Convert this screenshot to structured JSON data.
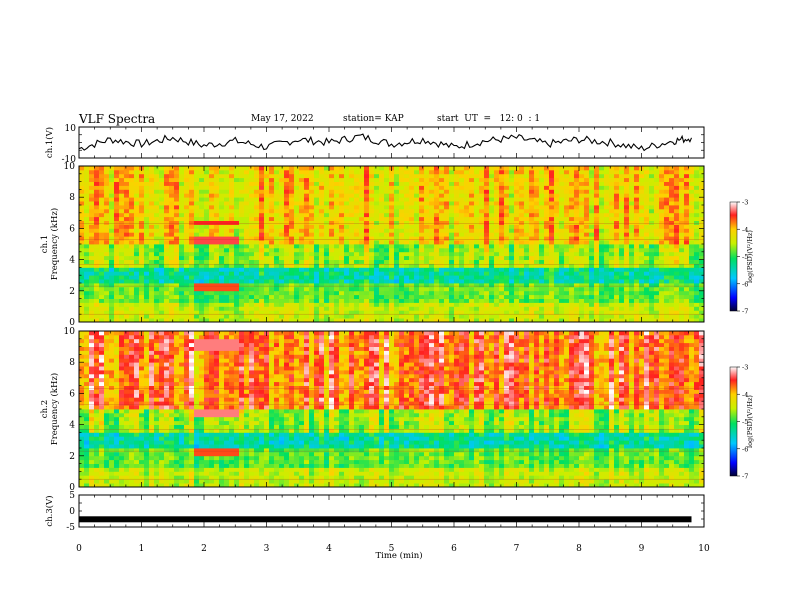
{
  "header": {
    "title": "VLF Spectra",
    "date": "May 17, 2022",
    "station": "station= KAP",
    "start": "start  UT  =   12: 0  : 1"
  },
  "chart_data": [
    {
      "type": "line",
      "panel": "ch1-waveform",
      "ylabel": "ch.1(V)",
      "ylim": [
        -10,
        10
      ],
      "yticks": [
        "10",
        "-10"
      ],
      "xlim": [
        0,
        10
      ],
      "x_min": [
        0,
        0.5,
        1,
        1.5,
        2,
        2.5,
        3,
        3.5,
        4,
        4.5,
        5,
        5.5,
        6,
        6.5,
        7,
        7.5,
        8,
        8.5,
        9,
        9.5,
        9.8
      ],
      "y_V": [
        -4,
        2,
        -1,
        3,
        -2,
        1,
        -3,
        2,
        0,
        4,
        -1,
        2,
        -3,
        1,
        3,
        -1,
        2,
        0,
        -4,
        1,
        3
      ]
    },
    {
      "type": "heatmap",
      "panel": "ch1-spectrogram",
      "ylabel": "ch.1\nFrequency  (kHz)",
      "ylim": [
        0,
        10
      ],
      "yticks": [
        "0",
        "2",
        "4",
        "6",
        "8",
        "10"
      ],
      "xlim": [
        0,
        10
      ],
      "colorbar": {
        "label": "log(PSD)(V²/Hz)",
        "range": [
          -7,
          -3
        ],
        "ticks": [
          "-3",
          "-4",
          "-5",
          "-6",
          "-7"
        ]
      }
    },
    {
      "type": "heatmap",
      "panel": "ch2-spectrogram",
      "ylabel": "ch.2\nFrequency  (kHz)",
      "ylim": [
        0,
        10
      ],
      "yticks": [
        "0",
        "2",
        "4",
        "6",
        "8",
        "10"
      ],
      "xlim": [
        0,
        10
      ],
      "colorbar": {
        "label": "log(PSD)(V²/Hz)",
        "range": [
          -7,
          -3
        ],
        "ticks": [
          "-3",
          "-4",
          "-5",
          "-6",
          "-7"
        ]
      }
    },
    {
      "type": "line",
      "panel": "ch3-waveform",
      "ylabel": "ch.3(V)",
      "ylim": [
        -5,
        5
      ],
      "yticks": [
        "5",
        "0",
        "-5"
      ],
      "xlim": [
        0,
        10
      ],
      "x_min": [
        0,
        9.8
      ],
      "y_V": [
        -2.6,
        -2.6
      ]
    }
  ],
  "xaxis": {
    "label": "Time  (min)",
    "ticks": [
      "0",
      "1",
      "2",
      "3",
      "4",
      "5",
      "6",
      "7",
      "8",
      "9",
      "10"
    ]
  }
}
